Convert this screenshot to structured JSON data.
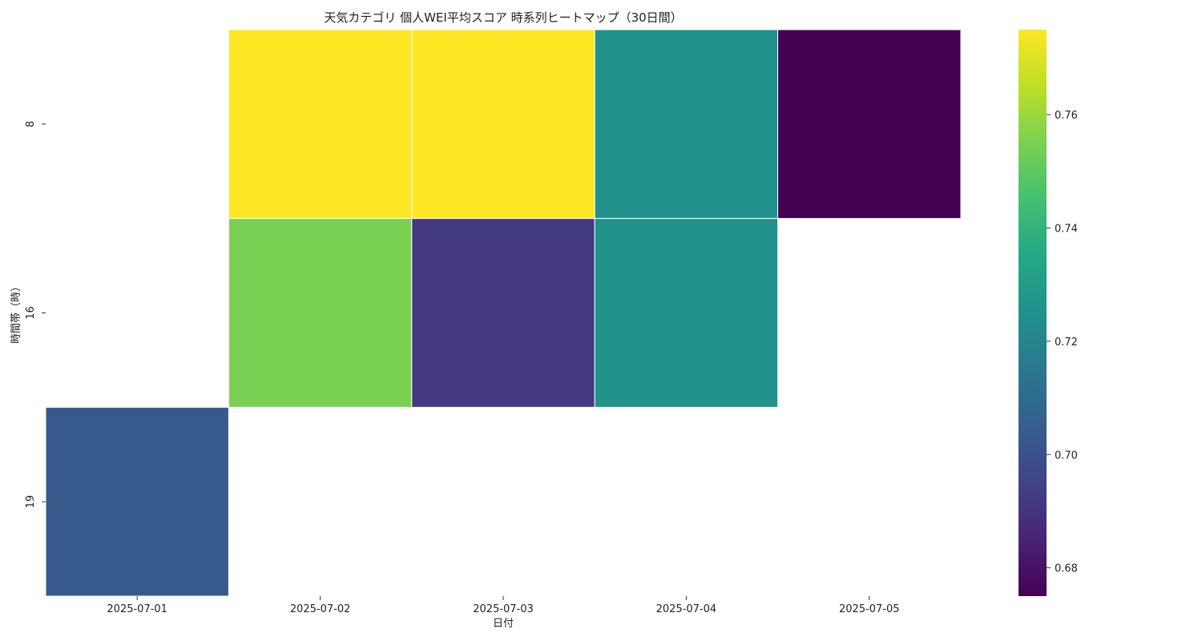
{
  "chart_data": {
    "type": "heatmap",
    "title": "天気カテゴリ 個人WEI平均スコア 時系列ヒートマップ（30日間）",
    "xlabel": "日付",
    "ylabel": "時間帯（時）",
    "x_categories": [
      "2025-07-01",
      "2025-07-02",
      "2025-07-03",
      "2025-07-04",
      "2025-07-05"
    ],
    "y_categories": [
      "8",
      "16",
      "19"
    ],
    "values": [
      [
        null,
        0.775,
        0.775,
        0.725,
        0.675
      ],
      [
        null,
        0.755,
        0.692,
        0.725,
        null
      ],
      [
        0.703,
        null,
        null,
        null,
        null
      ]
    ],
    "colorbar": {
      "colormap": "viridis",
      "range": [
        0.675,
        0.775
      ],
      "ticks": [
        0.68,
        0.7,
        0.72,
        0.74,
        0.76
      ],
      "tick_labels": [
        "0.68",
        "0.70",
        "0.72",
        "0.74",
        "0.76"
      ]
    },
    "grid": false,
    "legend": "right"
  }
}
